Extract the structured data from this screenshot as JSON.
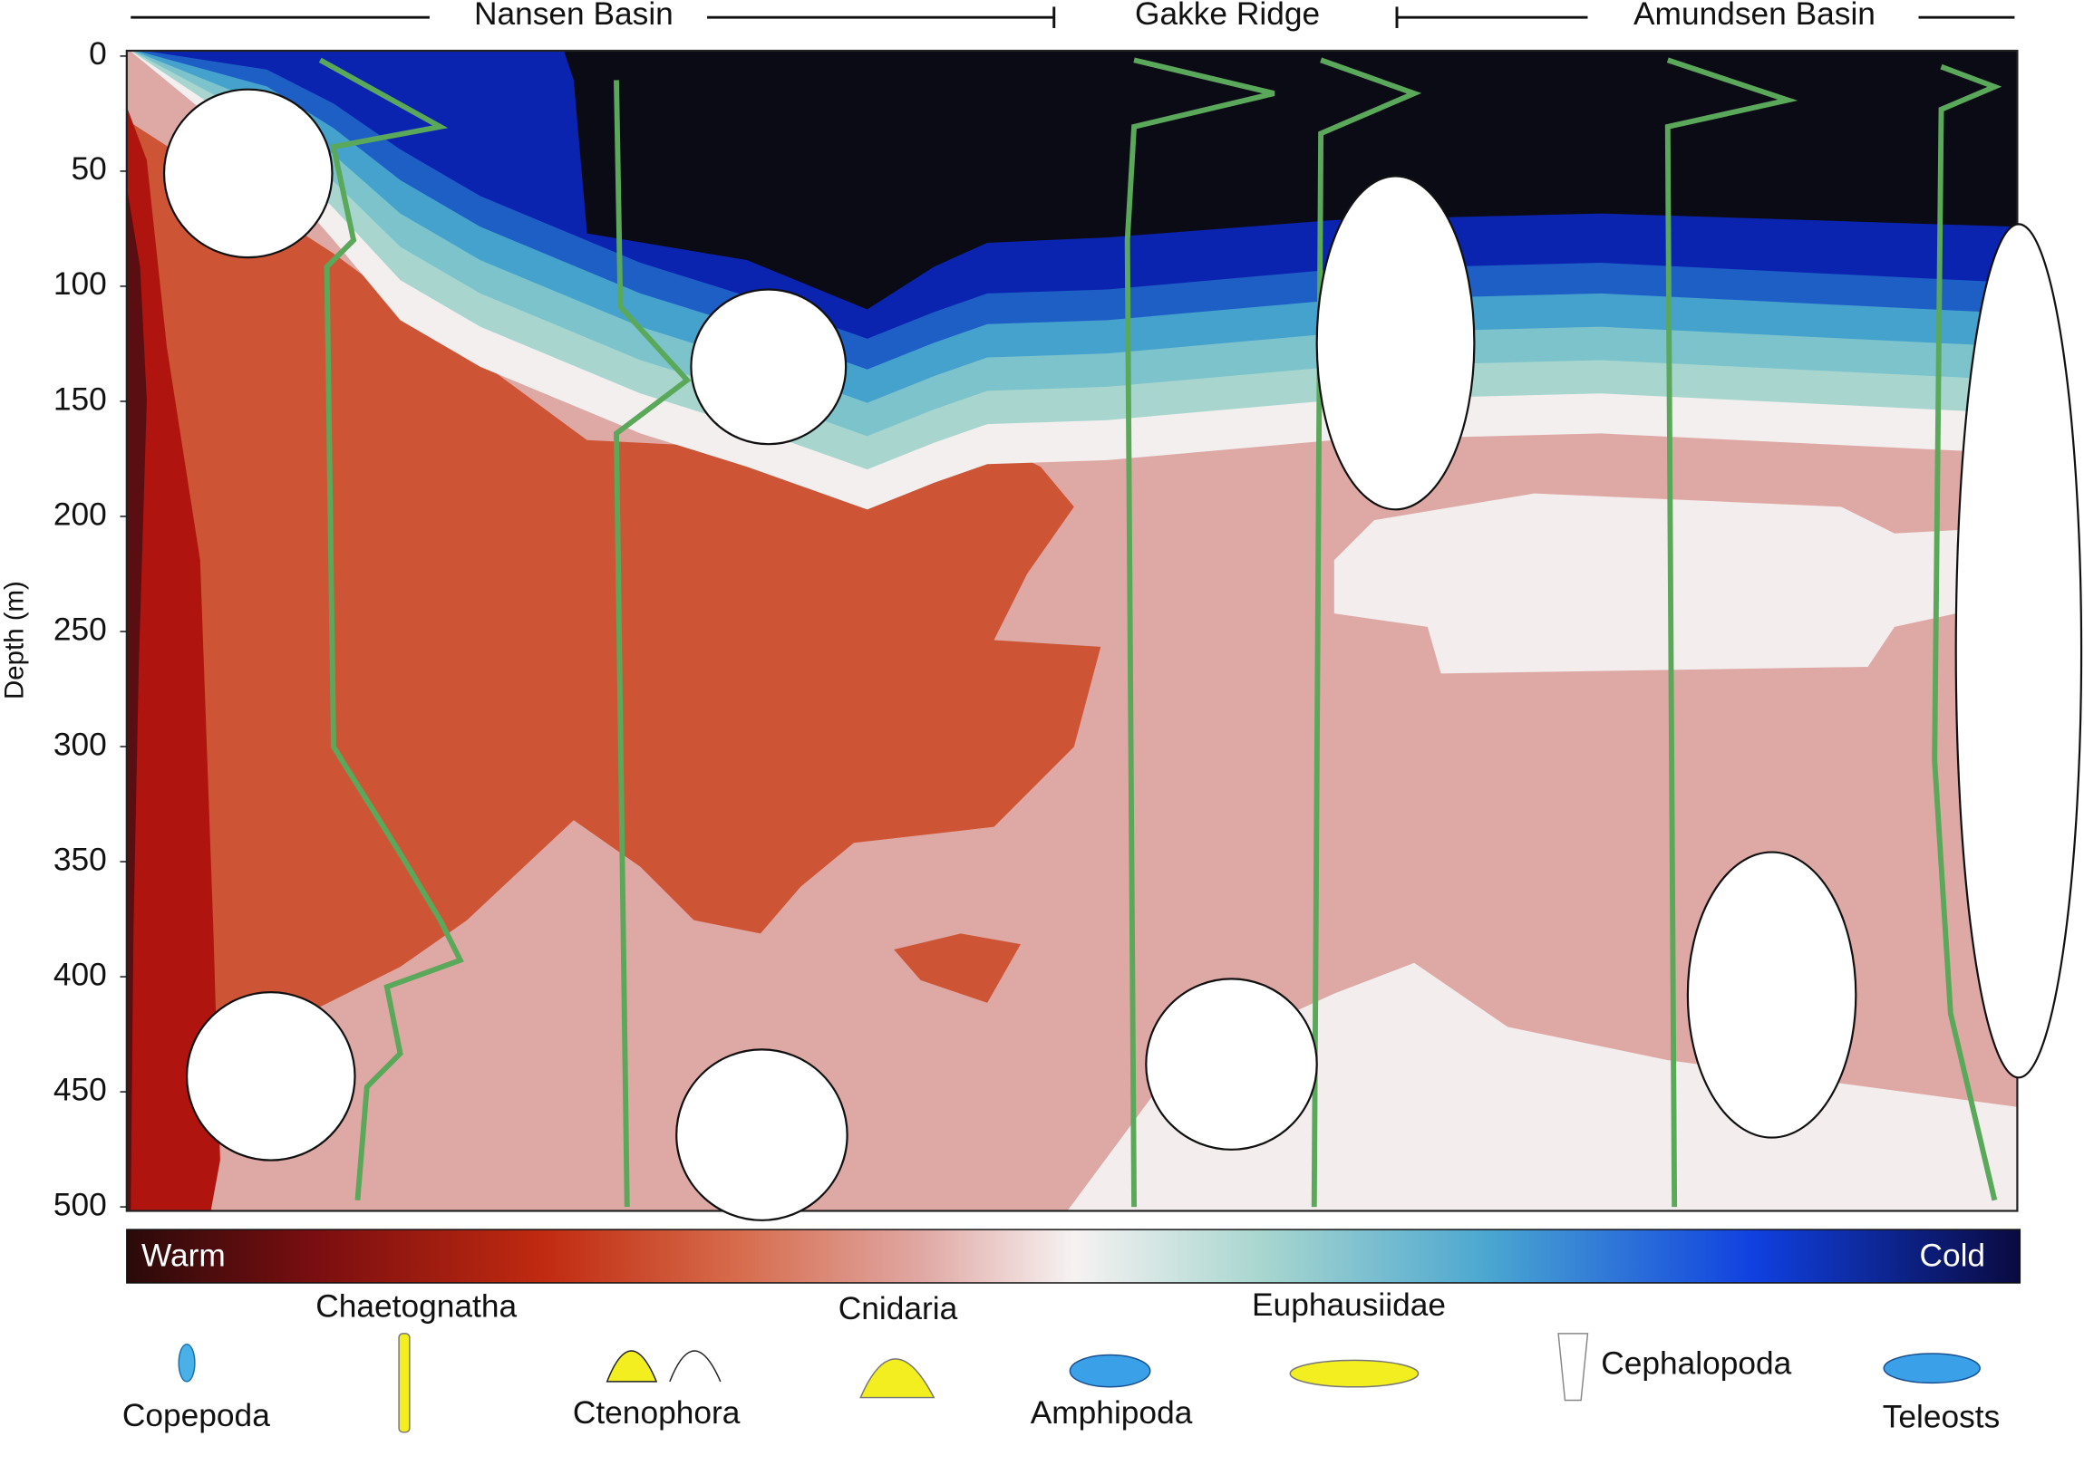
{
  "chart_data": {
    "type": "section",
    "sections": [
      "Nansen Basin",
      "Gakke Ridge",
      "Amundsen Basin"
    ],
    "ylabel": "Depth (m)",
    "ylim": [
      0,
      500
    ],
    "yticks": [
      0,
      50,
      100,
      150,
      200,
      250,
      300,
      350,
      400,
      450,
      500
    ],
    "colorbar": {
      "low": "Warm",
      "high": "Cold"
    },
    "taxa": [
      "Copepoda",
      "Chaetognatha",
      "Ctenophora",
      "Cnidaria",
      "Amphipoda",
      "Euphausiidae",
      "Cephalopoda",
      "Teleosts"
    ]
  }
}
